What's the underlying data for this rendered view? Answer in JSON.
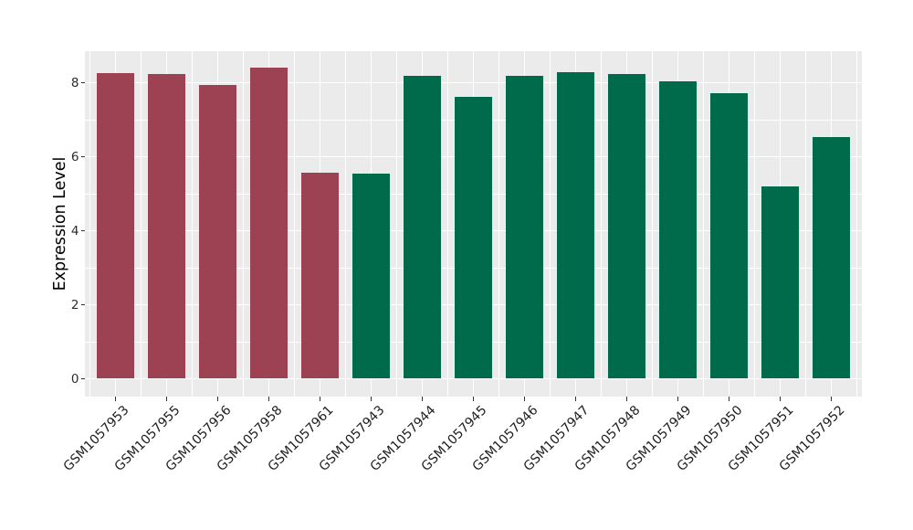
{
  "figure": {
    "background": "#FFFFFF",
    "panel_background": "#EBEBEB"
  },
  "chart_data": {
    "type": "bar",
    "title": "",
    "xlabel": "",
    "ylabel": "Expression Level",
    "categories": [
      "GSM1057953",
      "GSM1057955",
      "GSM1057956",
      "GSM1057958",
      "GSM1057961",
      "GSM1057943",
      "GSM1057944",
      "GSM1057945",
      "GSM1057946",
      "GSM1057947",
      "GSM1057948",
      "GSM1057949",
      "GSM1057950",
      "GSM1057951",
      "GSM1057952"
    ],
    "values": [
      8.26,
      8.24,
      7.94,
      8.41,
      5.56,
      5.54,
      8.19,
      7.62,
      8.18,
      8.29,
      8.24,
      8.04,
      7.71,
      5.19,
      6.53
    ],
    "bar_colors": [
      "#9C4252",
      "#9C4252",
      "#9C4252",
      "#9C4252",
      "#9C4252",
      "#006B4A",
      "#006B4A",
      "#006B4A",
      "#006B4A",
      "#006B4A",
      "#006B4A",
      "#006B4A",
      "#006B4A",
      "#006B4A",
      "#006B4A"
    ],
    "group_colors": {
      "group1_red": "#9C4252",
      "group2_green": "#006B4A"
    },
    "yticks": [
      0,
      2,
      4,
      6,
      8
    ],
    "minor_yticks": [
      1,
      3,
      5,
      7
    ],
    "ylim": [
      -0.48,
      8.85
    ],
    "grid": "major-and-minor, white on gray panel",
    "gridline_color": "#FFFFFF",
    "tick_mark_color": "#333333",
    "tick_label_color": "#2B2B2B",
    "legend": "none",
    "x_tick_label_rotation_deg": 45
  }
}
